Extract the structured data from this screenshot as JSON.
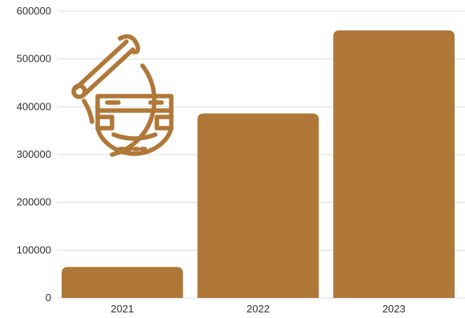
{
  "colors": {
    "bar": "#b07838",
    "grid": "#dcdcdc",
    "text": "#2f2f2f"
  },
  "icon": {
    "name": "diaper-safety-pin-icon"
  },
  "chart_data": {
    "type": "bar",
    "categories": [
      "2021",
      "2022",
      "2023"
    ],
    "values": [
      65000,
      386000,
      560000
    ],
    "ylim": [
      0,
      600000
    ],
    "yticks": [
      0,
      100000,
      200000,
      300000,
      400000,
      500000,
      600000
    ],
    "grid": true,
    "title": "",
    "xlabel": "",
    "ylabel": "",
    "legend": "none"
  }
}
